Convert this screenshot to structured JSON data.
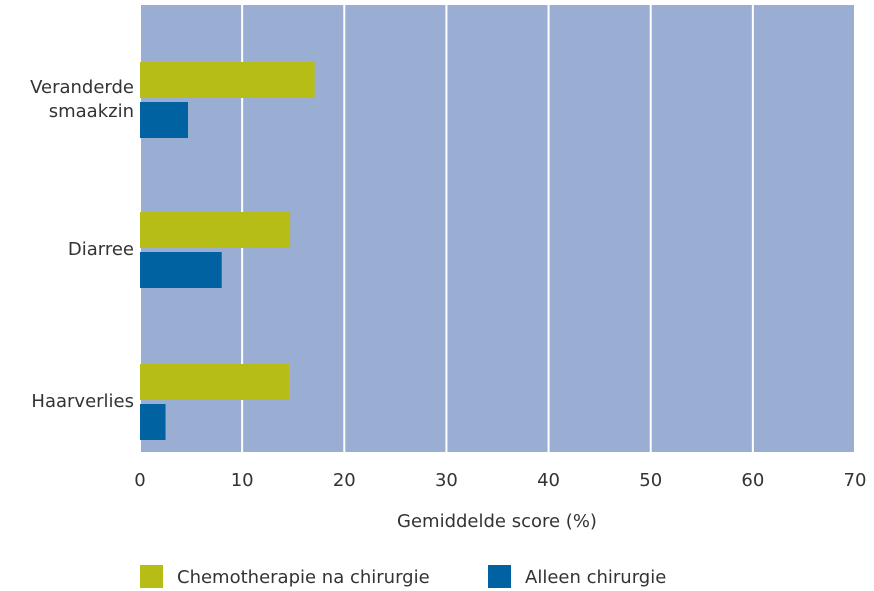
{
  "chart_data": {
    "type": "bar",
    "orientation": "horizontal",
    "categories": [
      "Veranderde smaakzin",
      "Diarree",
      "Haarverlies"
    ],
    "series": [
      {
        "name": "Chemotherapie na chirurgie",
        "color": "#b5bd16",
        "values": [
          17.1,
          14.7,
          14.6
        ]
      },
      {
        "name": "Alleen chirurgie",
        "color": "#0062a0",
        "values": [
          4.7,
          8.0,
          2.5
        ]
      }
    ],
    "xlabel": "Gemiddelde score (%)",
    "xlim": [
      0,
      70
    ],
    "xticks": [
      0,
      10,
      20,
      30,
      40,
      50,
      60,
      70
    ],
    "grid": true,
    "background": "#9aaed3",
    "legend": "bottom"
  }
}
